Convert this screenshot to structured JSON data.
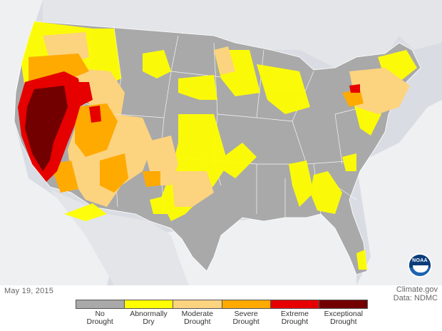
{
  "map": {
    "date": "May 19, 2015",
    "credit_line1": "Climate.gov",
    "credit_line2": "Data: NDMC",
    "logo_text": "NOAA"
  },
  "colors": {
    "background": "#d9dde3",
    "ocean": "#f2f3f4",
    "border": "#ffffff"
  },
  "legend": {
    "items": [
      {
        "label_line1": "No",
        "label_line2": "Drought",
        "color": "#a9a9a9"
      },
      {
        "label_line1": "Abnormally",
        "label_line2": "Dry",
        "color": "#ffff00"
      },
      {
        "label_line1": "Moderate",
        "label_line2": "Drought",
        "color": "#fcd37f"
      },
      {
        "label_line1": "Severe",
        "label_line2": "Drought",
        "color": "#ffaa00"
      },
      {
        "label_line1": "Extreme",
        "label_line2": "Drought",
        "color": "#e60000"
      },
      {
        "label_line1": "Exceptional",
        "label_line2": "Drought",
        "color": "#730000"
      }
    ]
  }
}
